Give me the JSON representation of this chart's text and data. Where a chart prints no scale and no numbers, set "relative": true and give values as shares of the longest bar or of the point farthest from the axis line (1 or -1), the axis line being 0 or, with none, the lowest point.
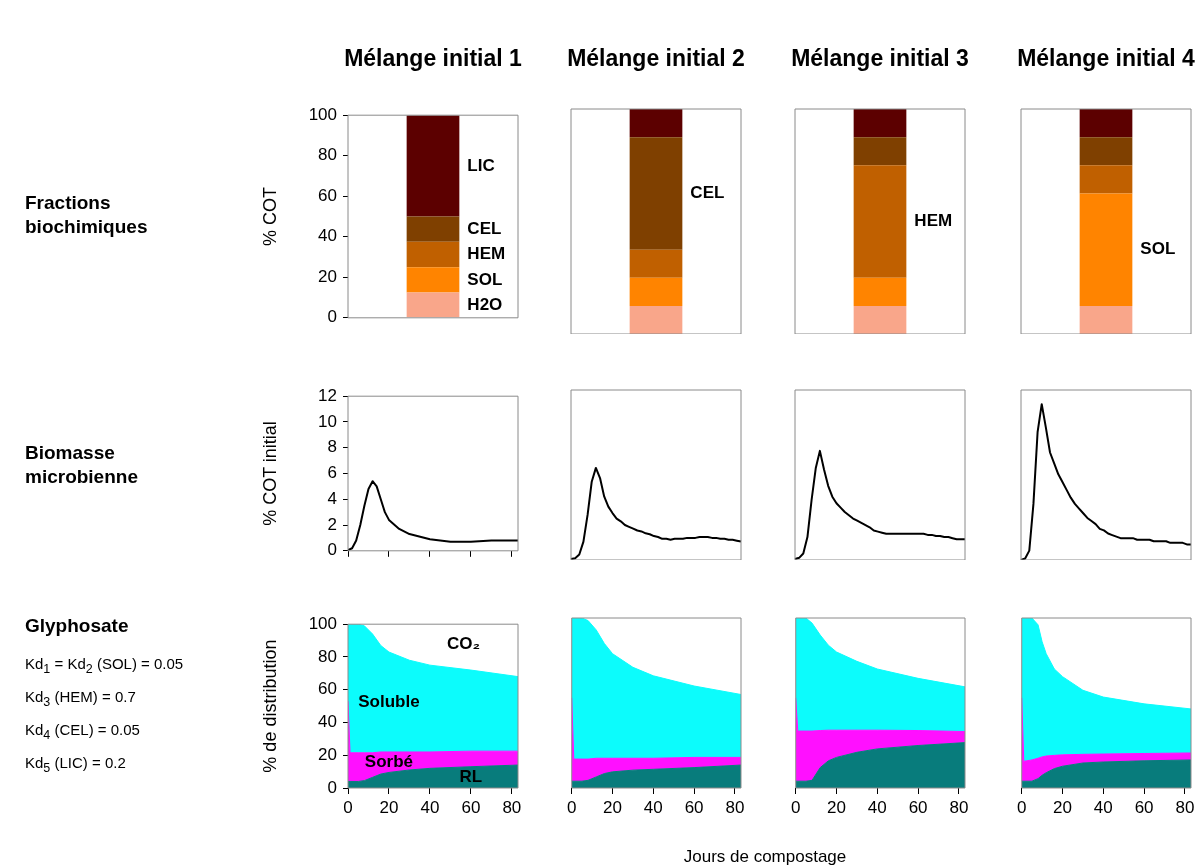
{
  "chart_data": [
    {
      "type": "other",
      "title": "Fractions biochimiques"
    },
    {
      "type": "bar",
      "stacked": true,
      "title": "Mélange initial 1",
      "ylabel": "% COT",
      "tick_labels": "y",
      "categories": [
        null
      ],
      "ylim": [
        0,
        100
      ],
      "yticks": [
        0,
        20,
        40,
        60,
        80,
        100
      ],
      "series": [
        {
          "name": "H2O",
          "color": "#f9a68a",
          "values": [
            12.5
          ]
        },
        {
          "name": "SOL",
          "color": "#ff8400",
          "values": [
            12.5
          ]
        },
        {
          "name": "HEM",
          "color": "#c06000",
          "values": [
            12.5
          ]
        },
        {
          "name": "CEL",
          "color": "#7f4000",
          "values": [
            12.5
          ]
        },
        {
          "name": "LIC",
          "color": "#5c0000",
          "values": [
            50
          ]
        }
      ]
    },
    {
      "type": "bar",
      "stacked": true,
      "relative": true,
      "title": "Mélange initial 2",
      "tick_labels": false,
      "categories": [
        null
      ],
      "series": [
        {
          "color": "#f9a68a",
          "values": [
            0.125
          ]
        },
        {
          "color": "#ff8400",
          "values": [
            0.125
          ]
        },
        {
          "color": "#c06000",
          "values": [
            0.125
          ]
        },
        {
          "name": "CEL",
          "color": "#7f4000",
          "values": [
            0.5
          ]
        },
        {
          "color": "#5c0000",
          "values": [
            0.125
          ]
        }
      ]
    },
    {
      "type": "bar",
      "stacked": true,
      "relative": true,
      "title": "Mélange initial 3",
      "tick_labels": false,
      "categories": [
        null
      ],
      "series": [
        {
          "color": "#f9a68a",
          "values": [
            0.125
          ]
        },
        {
          "color": "#ff8400",
          "values": [
            0.125
          ]
        },
        {
          "name": "HEM",
          "color": "#c06000",
          "values": [
            0.5
          ]
        },
        {
          "color": "#7f4000",
          "values": [
            0.125
          ]
        },
        {
          "color": "#5c0000",
          "values": [
            0.125
          ]
        }
      ]
    },
    {
      "type": "bar",
      "stacked": true,
      "relative": true,
      "title": "Mélange initial 4",
      "tick_labels": false,
      "categories": [
        null
      ],
      "series": [
        {
          "color": "#f9a68a",
          "values": [
            0.125
          ]
        },
        {
          "name": "SOL",
          "color": "#ff8400",
          "values": [
            0.5
          ]
        },
        {
          "color": "#c06000",
          "values": [
            0.125
          ]
        },
        {
          "color": "#7f4000",
          "values": [
            0.125
          ]
        },
        {
          "color": "#5c0000",
          "values": [
            0.125
          ]
        }
      ]
    },
    {
      "type": "other",
      "title": "Biomasse microbienne"
    },
    {
      "type": "line",
      "ylabel": "% COT initial",
      "tick_labels": "y",
      "color": "#000000",
      "xlim": [
        0,
        83
      ],
      "xticks": [
        0,
        20,
        40,
        60,
        80
      ],
      "ylim": [
        0,
        12
      ],
      "yticks": [
        0,
        2,
        4,
        6,
        8,
        10,
        12
      ],
      "x": [
        0,
        2,
        4,
        6,
        8,
        10,
        12,
        14,
        16,
        18,
        20,
        25,
        30,
        40,
        50,
        60,
        70,
        83
      ],
      "values": [
        0.05,
        0.2,
        0.8,
        2,
        3.5,
        4.8,
        5.4,
        5,
        4,
        3,
        2.4,
        1.7,
        1.3,
        0.9,
        0.7,
        0.7,
        0.8,
        0.8
      ]
    },
    {
      "type": "line",
      "relative": true,
      "tick_labels": false,
      "color": "#000000",
      "categories": [
        null,
        null,
        null,
        null,
        null,
        null,
        null,
        null,
        null,
        null,
        null,
        null,
        null,
        null,
        null,
        null,
        null,
        null,
        null,
        null,
        null,
        null,
        null,
        null,
        null,
        null,
        null,
        null,
        null,
        null,
        null,
        null,
        null,
        null,
        null,
        null,
        null,
        null,
        null,
        null,
        null,
        null
      ],
      "values": [
        0.01,
        0.02,
        0.06,
        0.2,
        0.49,
        0.85,
        1,
        0.89,
        0.69,
        0.58,
        0.51,
        0.45,
        0.42,
        0.38,
        0.36,
        0.34,
        0.32,
        0.31,
        0.29,
        0.28,
        0.26,
        0.25,
        0.23,
        0.23,
        0.22,
        0.23,
        0.23,
        0.23,
        0.24,
        0.24,
        0.24,
        0.25,
        0.25,
        0.25,
        0.24,
        0.24,
        0.23,
        0.23,
        0.22,
        0.22,
        0.21,
        0.2
      ]
    },
    {
      "type": "line",
      "relative": true,
      "tick_labels": false,
      "color": "#000000",
      "categories": [
        null,
        null,
        null,
        null,
        null,
        null,
        null,
        null,
        null,
        null,
        null,
        null,
        null,
        null,
        null,
        null,
        null,
        null,
        null,
        null,
        null,
        null,
        null,
        null,
        null,
        null,
        null,
        null,
        null,
        null,
        null,
        null,
        null,
        null,
        null,
        null,
        null,
        null,
        null,
        null,
        null,
        null
      ],
      "values": [
        0.01,
        0.02,
        0.06,
        0.21,
        0.55,
        0.84,
        1,
        0.83,
        0.68,
        0.58,
        0.52,
        0.48,
        0.44,
        0.41,
        0.38,
        0.36,
        0.34,
        0.32,
        0.3,
        0.27,
        0.26,
        0.25,
        0.24,
        0.24,
        0.24,
        0.24,
        0.24,
        0.24,
        0.24,
        0.24,
        0.24,
        0.24,
        0.23,
        0.23,
        0.22,
        0.22,
        0.21,
        0.21,
        0.2,
        0.19,
        0.19,
        0.19
      ]
    },
    {
      "type": "line",
      "relative": true,
      "tick_labels": false,
      "color": "#000000",
      "categories": [
        null,
        null,
        null,
        null,
        null,
        null,
        null,
        null,
        null,
        null,
        null,
        null,
        null,
        null,
        null,
        null,
        null,
        null,
        null,
        null,
        null,
        null,
        null,
        null,
        null,
        null,
        null,
        null,
        null,
        null,
        null,
        null,
        null,
        null,
        null,
        null,
        null,
        null,
        null,
        null,
        null,
        null
      ],
      "values": [
        0,
        0.01,
        0.06,
        0.36,
        0.82,
        1,
        0.85,
        0.69,
        0.62,
        0.55,
        0.5,
        0.45,
        0.4,
        0.36,
        0.33,
        0.3,
        0.27,
        0.25,
        0.23,
        0.2,
        0.19,
        0.17,
        0.16,
        0.15,
        0.14,
        0.14,
        0.14,
        0.14,
        0.13,
        0.13,
        0.13,
        0.13,
        0.12,
        0.12,
        0.12,
        0.12,
        0.11,
        0.11,
        0.11,
        0.11,
        0.1,
        0.1
      ]
    },
    {
      "type": "other",
      "title": "Glyphosate",
      "annotations": [
        "Kd$_{1}$ = Kd$_{2}$ (SOL) = 0.05",
        "Kd$_{3}$ (HEM) = 0.7",
        "Kd$_{4}$ (CEL) = 0.05",
        "Kd$_{5}$ (LIC) = 0.2"
      ]
    },
    {
      "type": "area",
      "stacked": true,
      "ylabel": "% de distribution",
      "annotations": [
        "CO₂"
      ],
      "xlim": [
        0,
        83
      ],
      "xticks": [
        0,
        20,
        40,
        60,
        80
      ],
      "ylim": [
        0,
        100
      ],
      "yticks": [
        0,
        20,
        40,
        60,
        80,
        100
      ],
      "x": [
        0,
        1,
        5,
        8,
        12,
        16,
        20,
        30,
        40,
        60,
        83
      ],
      "series": [
        {
          "name": "RL",
          "color": "#087c7c",
          "values": [
            4,
            4,
            4,
            4.5,
            6.5,
            8.5,
            9.5,
            11,
            12,
            13,
            14
          ]
        },
        {
          "name": "Sorbé",
          "color": "#ff10ff",
          "values": [
            49,
            17.5,
            17.5,
            17,
            15,
            13.5,
            12.5,
            11,
            10,
            9.5,
            8.5
          ]
        },
        {
          "name": "Soluble",
          "color": "#0cfcfc",
          "values": [
            47,
            78.5,
            78.5,
            77.5,
            72.5,
            65,
            61,
            56,
            53,
            49.5,
            45.5
          ]
        }
      ]
    },
    {
      "type": "area",
      "stacked": true,
      "relative": true,
      "xlabel": "Jours de compostage",
      "tick_labels": "x",
      "xlim": [
        0,
        83
      ],
      "xticks": [
        0,
        20,
        40,
        60,
        80
      ],
      "x": [
        0,
        1,
        5,
        8,
        12,
        16,
        20,
        30,
        40,
        60,
        83
      ],
      "series": [
        {
          "color": "#087c7c",
          "values": [
            0.04,
            0.04,
            0.04,
            0.045,
            0.065,
            0.085,
            0.095,
            0.105,
            0.11,
            0.12,
            0.135
          ]
        },
        {
          "color": "#ff10ff",
          "values": [
            0.49,
            0.13,
            0.13,
            0.125,
            0.11,
            0.09,
            0.08,
            0.07,
            0.065,
            0.06,
            0.045
          ]
        },
        {
          "color": "#0cfcfc",
          "values": [
            0.47,
            0.83,
            0.83,
            0.815,
            0.755,
            0.675,
            0.615,
            0.535,
            0.485,
            0.42,
            0.37
          ]
        }
      ]
    },
    {
      "type": "area",
      "stacked": true,
      "relative": true,
      "tick_labels": "x",
      "xlim": [
        0,
        83
      ],
      "xticks": [
        0,
        20,
        40,
        60,
        80
      ],
      "x": [
        0,
        1,
        5,
        8,
        12,
        16,
        20,
        30,
        40,
        60,
        83
      ],
      "series": [
        {
          "color": "#087c7c",
          "values": [
            0.04,
            0.04,
            0.04,
            0.045,
            0.12,
            0.16,
            0.18,
            0.21,
            0.23,
            0.25,
            0.267
          ]
        },
        {
          "color": "#ff10ff",
          "values": [
            0.49,
            0.295,
            0.295,
            0.29,
            0.218,
            0.18,
            0.16,
            0.13,
            0.11,
            0.088,
            0.065
          ]
        },
        {
          "color": "#0cfcfc",
          "values": [
            0.47,
            0.665,
            0.665,
            0.635,
            0.562,
            0.5,
            0.46,
            0.405,
            0.36,
            0.307,
            0.263
          ]
        }
      ]
    },
    {
      "type": "area",
      "stacked": true,
      "relative": true,
      "tick_labels": "x",
      "xlim": [
        0,
        83
      ],
      "xticks": [
        0,
        20,
        40,
        60,
        80
      ],
      "x": [
        0,
        1,
        5,
        8,
        10,
        12,
        16,
        20,
        30,
        40,
        60,
        83
      ],
      "series": [
        {
          "color": "#087c7c",
          "values": [
            0.04,
            0.04,
            0.04,
            0.055,
            0.075,
            0.09,
            0.114,
            0.128,
            0.147,
            0.153,
            0.16,
            0.165
          ]
        },
        {
          "color": "#ff10ff",
          "values": [
            0.49,
            0.117,
            0.125,
            0.12,
            0.108,
            0.098,
            0.078,
            0.067,
            0.051,
            0.047,
            0.043,
            0.041
          ]
        },
        {
          "color": "#0cfcfc",
          "values": [
            0.47,
            0.843,
            0.835,
            0.785,
            0.677,
            0.602,
            0.508,
            0.46,
            0.377,
            0.335,
            0.292,
            0.259
          ]
        }
      ]
    }
  ]
}
